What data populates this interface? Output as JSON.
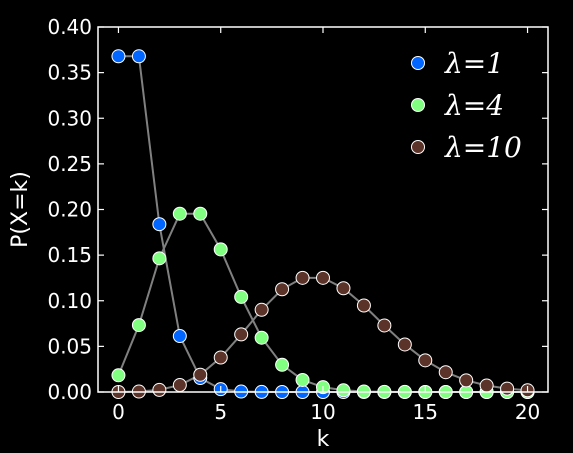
{
  "chart_data": {
    "type": "line",
    "title": "",
    "xlabel": "k",
    "ylabel": "P(X=k)",
    "xlim": [
      -1,
      21
    ],
    "ylim": [
      0,
      0.4
    ],
    "xticks": [
      0,
      5,
      10,
      15,
      20
    ],
    "xtick_labels": [
      "0",
      "5",
      "10",
      "15",
      "20"
    ],
    "yticks": [
      0.0,
      0.05,
      0.1,
      0.15,
      0.2,
      0.25,
      0.3,
      0.35,
      0.4
    ],
    "ytick_labels": [
      "0.00",
      "0.05",
      "0.10",
      "0.15",
      "0.20",
      "0.25",
      "0.30",
      "0.35",
      "0.40"
    ],
    "grid": false,
    "legend_position": "top-right",
    "line_color": "#808080",
    "background": "#000000",
    "foreground": "#ffffff",
    "series": [
      {
        "name": "λ=1",
        "color": "#0066ff",
        "x": [
          0,
          1,
          2,
          3,
          4,
          5,
          6,
          7,
          8,
          9,
          10,
          11,
          12,
          13,
          14,
          15,
          16,
          17,
          18,
          19,
          20
        ],
        "values": [
          0.3679,
          0.3679,
          0.1839,
          0.0613,
          0.0153,
          0.0031,
          0.0005,
          0.0001,
          0.0,
          0.0,
          0.0,
          0.0,
          0.0,
          0.0,
          0.0,
          0.0,
          0.0,
          0.0,
          0.0,
          0.0,
          0.0
        ]
      },
      {
        "name": "λ=4",
        "color": "#80ff80",
        "x": [
          0,
          1,
          2,
          3,
          4,
          5,
          6,
          7,
          8,
          9,
          10,
          11,
          12,
          13,
          14,
          15,
          16,
          17,
          18,
          19,
          20
        ],
        "values": [
          0.0183,
          0.0733,
          0.1465,
          0.1954,
          0.1954,
          0.1563,
          0.1042,
          0.0595,
          0.0298,
          0.0132,
          0.0053,
          0.0019,
          0.0006,
          0.0002,
          0.0001,
          0.0,
          0.0,
          0.0,
          0.0,
          0.0,
          0.0
        ]
      },
      {
        "name": "λ=10",
        "color": "#5c3328",
        "x": [
          0,
          1,
          2,
          3,
          4,
          5,
          6,
          7,
          8,
          9,
          10,
          11,
          12,
          13,
          14,
          15,
          16,
          17,
          18,
          19,
          20
        ],
        "values": [
          0.0,
          0.0005,
          0.0023,
          0.0076,
          0.0189,
          0.0378,
          0.0631,
          0.0901,
          0.1126,
          0.1251,
          0.1251,
          0.1137,
          0.0948,
          0.0729,
          0.0521,
          0.0347,
          0.0217,
          0.0128,
          0.0071,
          0.0037,
          0.0019
        ]
      }
    ]
  }
}
